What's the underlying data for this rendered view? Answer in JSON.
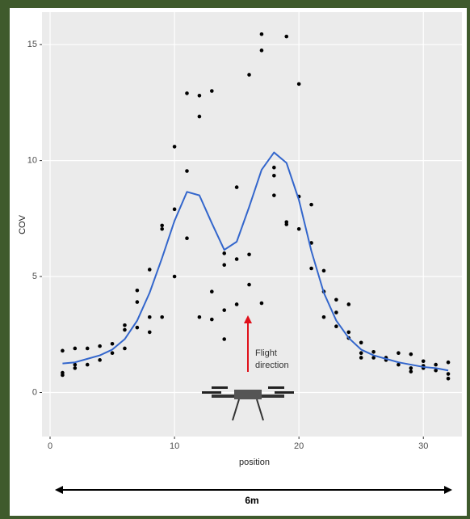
{
  "chart_data": {
    "type": "scatter",
    "xlabel": "position",
    "ylabel": "COV",
    "xlim": [
      -0.65,
      33.1
    ],
    "ylim": [
      -1.9,
      16.4
    ],
    "xticks": [
      0,
      10,
      20,
      30
    ],
    "yticks": [
      0,
      5,
      10,
      15
    ],
    "grid": true,
    "annotation": [
      "Flight",
      "direction"
    ],
    "scale_label": "6m",
    "series": [
      {
        "type": "scatter",
        "color": "#000000",
        "x": [
          1,
          1,
          1,
          2,
          2,
          2,
          3,
          3,
          4,
          4,
          5,
          5,
          6,
          6,
          6,
          7,
          7,
          7,
          8,
          8,
          8,
          9,
          9,
          9,
          10,
          10,
          10,
          11,
          11,
          11,
          12,
          12,
          12,
          13,
          13,
          13,
          14,
          14,
          14,
          14,
          15,
          15,
          15,
          16,
          16,
          16,
          17,
          17,
          17,
          18,
          18,
          18,
          19,
          19,
          19,
          20,
          20,
          20,
          21,
          21,
          21,
          22,
          22,
          22,
          23,
          23,
          23,
          24,
          24,
          24,
          25,
          25,
          25,
          26,
          26,
          27,
          27,
          28,
          28,
          29,
          29,
          29,
          30,
          30,
          30,
          31,
          31,
          32,
          32,
          32
        ],
        "values": [
          1.8,
          0.85,
          0.75,
          1.9,
          1.2,
          1.05,
          1.9,
          1.2,
          2.0,
          1.4,
          2.1,
          1.7,
          2.9,
          2.7,
          1.9,
          4.4,
          3.9,
          2.8,
          5.3,
          3.25,
          2.6,
          7.2,
          7.05,
          3.25,
          10.6,
          7.9,
          5.0,
          12.9,
          9.55,
          6.65,
          12.8,
          11.9,
          3.25,
          13.0,
          4.35,
          3.15,
          6.0,
          5.5,
          3.55,
          2.3,
          8.85,
          5.75,
          3.8,
          13.7,
          5.95,
          4.65,
          15.45,
          14.75,
          3.85,
          9.7,
          9.35,
          8.5,
          15.35,
          7.35,
          7.25,
          13.3,
          8.45,
          7.05,
          8.1,
          6.45,
          5.35,
          5.25,
          4.35,
          3.25,
          4.0,
          3.45,
          2.85,
          3.8,
          2.6,
          2.35,
          2.15,
          1.7,
          1.5,
          1.75,
          1.5,
          1.5,
          1.4,
          1.7,
          1.2,
          1.65,
          1.05,
          0.9,
          1.35,
          1.15,
          1.05,
          1.2,
          0.95,
          1.3,
          0.8,
          0.6
        ]
      },
      {
        "type": "line",
        "color": "#3366cc",
        "x": [
          1,
          2,
          3,
          4,
          5,
          6,
          7,
          8,
          9,
          10,
          11,
          12,
          13,
          14,
          15,
          16,
          17,
          18,
          19,
          20,
          21,
          22,
          23,
          24,
          25,
          26,
          27,
          28,
          29,
          30,
          31,
          32
        ],
        "values": [
          1.25,
          1.3,
          1.45,
          1.6,
          1.85,
          2.3,
          3.1,
          4.3,
          5.8,
          7.4,
          8.65,
          8.5,
          7.3,
          6.15,
          6.5,
          8.0,
          9.6,
          10.35,
          9.9,
          8.3,
          6.1,
          4.3,
          3.1,
          2.35,
          1.85,
          1.6,
          1.45,
          1.3,
          1.2,
          1.1,
          1.05,
          0.95
        ]
      }
    ]
  }
}
